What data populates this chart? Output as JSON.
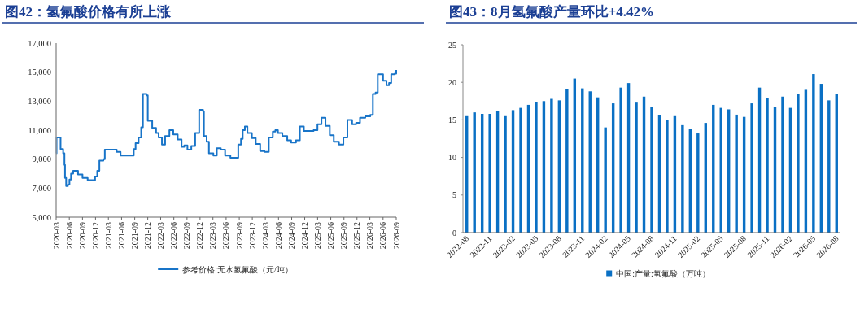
{
  "chart_data": [
    {
      "type": "step",
      "title": "图42：氢氟酸价格有所上涨",
      "legend": "bottom",
      "grid": false,
      "line_style": "solid",
      "ylim": [
        5000,
        17000
      ],
      "yticks": [
        {
          "value": 5000,
          "label": "5,000"
        },
        {
          "value": 7000,
          "label": "7,000"
        },
        {
          "value": 9000,
          "label": "9,000"
        },
        {
          "value": 11000,
          "label": "11,000"
        },
        {
          "value": 13000,
          "label": "13,000"
        },
        {
          "value": 15000,
          "label": "15,000"
        },
        {
          "value": 17000,
          "label": "17,000"
        }
      ],
      "xlim": [
        "2020-03-01",
        "2026-09-01"
      ],
      "xticks": [
        "2020-03",
        "2020-06",
        "2020-09",
        "2020-12",
        "2021-03",
        "2021-06",
        "2021-09",
        "2021-12",
        "2022-03",
        "2022-06",
        "2022-09",
        "2022-12",
        "2023-03",
        "2023-06",
        "2023-09",
        "2023-12",
        "2024-03",
        "2024-06",
        "2024-09",
        "2024-12",
        "2025-03",
        "2025-06",
        "2025-09",
        "2025-12",
        "2026-03",
        "2026-06",
        "2026-09"
      ],
      "series": [
        {
          "name": "参考价格:无水氢氟酸（元/吨）",
          "color": "#1874c8",
          "x": [
            "2020-03-01",
            "2020-03-04",
            "2020-04-01",
            "2020-04-19",
            "2020-04-28",
            "2020-05-02",
            "2020-05-10",
            "2020-05-22",
            "2020-06-02",
            "2020-06-13",
            "2020-06-28",
            "2020-08-01",
            "2020-09-01",
            "2020-10-07",
            "2020-11-28",
            "2020-12-13",
            "2020-12-28",
            "2021-01-25",
            "2021-02-04",
            "2021-03-01",
            "2021-04-28",
            "2021-05-25",
            "2021-08-25",
            "2021-09-07",
            "2021-09-28",
            "2021-10-16",
            "2021-10-28",
            "2021-11-22",
            "2021-12-01",
            "2022-01-01",
            "2022-01-28",
            "2022-02-15",
            "2022-03-10",
            "2022-04-01",
            "2022-05-01",
            "2022-05-28",
            "2022-06-28",
            "2022-07-25",
            "2022-08-13",
            "2022-09-04",
            "2022-10-01",
            "2022-10-28",
            "2022-11-25",
            "2022-12-22",
            "2022-12-28",
            "2023-01-16",
            "2023-02-01",
            "2023-03-04",
            "2023-03-28",
            "2023-04-25",
            "2023-05-25",
            "2023-07-01",
            "2023-08-25",
            "2023-09-13",
            "2023-09-25",
            "2023-10-10",
            "2023-10-28",
            "2023-11-28",
            "2023-12-25",
            "2024-01-25",
            "2024-02-24",
            "2024-03-25",
            "2024-04-22",
            "2024-05-10",
            "2024-05-28",
            "2024-06-28",
            "2024-08-01",
            "2024-08-28",
            "2024-10-01",
            "2024-10-28",
            "2024-11-25",
            "2025-01-13",
            "2025-02-01",
            "2025-02-28",
            "2025-03-28",
            "2025-04-25",
            "2025-05-25",
            "2025-06-22",
            "2025-07-28",
            "2025-08-28",
            "2025-09-25",
            "2025-10-28",
            "2025-11-25",
            "2025-12-22",
            "2026-01-28",
            "2026-03-04",
            "2026-03-22",
            "2026-04-10",
            "2026-04-25",
            "2026-05-25",
            "2026-06-01",
            "2026-06-25",
            "2026-07-13",
            "2026-07-28",
            "2026-08-22",
            "2026-09-01"
          ],
          "values": [
            9400,
            10500,
            9700,
            9400,
            8600,
            7700,
            7150,
            7250,
            7600,
            8000,
            8200,
            7950,
            7700,
            7550,
            7800,
            8200,
            8900,
            9000,
            9650,
            9650,
            9500,
            9250,
            9700,
            10100,
            10500,
            11200,
            13500,
            13400,
            11650,
            11150,
            10800,
            10500,
            10000,
            10600,
            11000,
            10700,
            10350,
            9850,
            9950,
            9650,
            9900,
            10800,
            12400,
            12300,
            10600,
            10200,
            9400,
            9250,
            9750,
            9650,
            9250,
            9100,
            10000,
            10400,
            11000,
            11250,
            10800,
            10450,
            10050,
            9550,
            9500,
            10500,
            10900,
            11000,
            10800,
            10600,
            10300,
            10150,
            10300,
            11250,
            10950,
            10950,
            11000,
            11400,
            11850,
            11300,
            10650,
            10200,
            10000,
            10500,
            11700,
            11400,
            11500,
            11850,
            11950,
            12050,
            13500,
            13600,
            14850,
            14850,
            14400,
            14100,
            14250,
            14850,
            14900,
            15150
          ]
        }
      ]
    },
    {
      "type": "bar",
      "title": "图43：8月氢氟酸产量环比+4.42%",
      "legend": "bottom",
      "grid": false,
      "ylim": [
        0,
        25
      ],
      "yticks": [
        0,
        5,
        10,
        15,
        20,
        25
      ],
      "categories": [
        "2022-08",
        null,
        null,
        "2022-11",
        null,
        null,
        "2023-02",
        null,
        null,
        "2023-05",
        null,
        null,
        "2023-08",
        null,
        null,
        "2023-11",
        null,
        null,
        "2024-02",
        null,
        null,
        "2024-05",
        null,
        null,
        "2024-08",
        null,
        null,
        "2024-11",
        null,
        null,
        "2025-02",
        null,
        null,
        "2025-05",
        null,
        null,
        "2025-08",
        null,
        null,
        "2025-11",
        null,
        null,
        "2026-02",
        null,
        null,
        "2026-05",
        null,
        null,
        "2026-08"
      ],
      "series": [
        {
          "name": "中国:产量:氢氟酸（万吨）",
          "color": "#0a70c4",
          "values": [
            15.5,
            16.0,
            15.8,
            15.8,
            16.2,
            15.5,
            16.3,
            16.6,
            17.0,
            17.4,
            17.5,
            17.8,
            17.6,
            19.1,
            20.5,
            19.2,
            18.8,
            18.0,
            14.0,
            17.2,
            19.3,
            19.9,
            17.3,
            18.1,
            16.7,
            15.6,
            15.0,
            15.5,
            14.3,
            13.8,
            13.2,
            14.6,
            17.0,
            16.6,
            16.4,
            15.7,
            15.4,
            17.2,
            19.3,
            17.9,
            16.7,
            18.1,
            16.6,
            18.5,
            19.0,
            21.1,
            19.8,
            17.6,
            18.4
          ]
        }
      ]
    }
  ]
}
